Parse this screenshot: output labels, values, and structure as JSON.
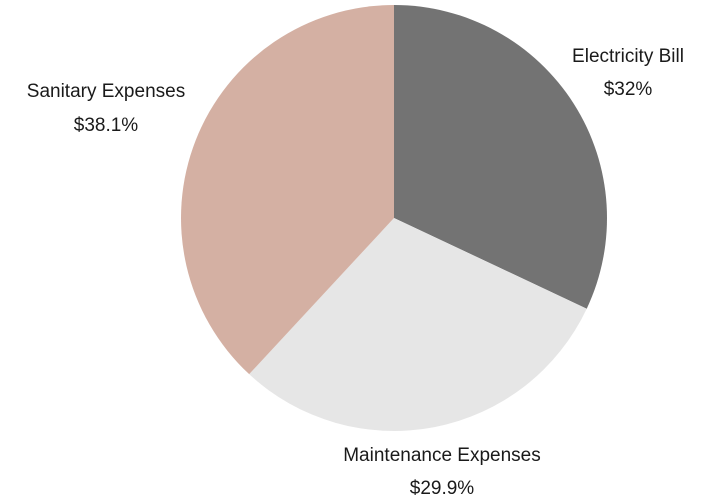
{
  "chart_data": {
    "type": "pie",
    "categories": [
      "Electricity Bill",
      "Maintenance Expenses",
      "Sanitary Expenses"
    ],
    "values": [
      32,
      29.9,
      38.1
    ],
    "value_labels": [
      "$32%",
      "$29.9%",
      "$38.1%"
    ],
    "colors": [
      "#737373",
      "#e6e6e6",
      "#d4b0a3"
    ],
    "start_angle": "12 o'clock",
    "direction": "clockwise",
    "legend": "none",
    "title": ""
  }
}
